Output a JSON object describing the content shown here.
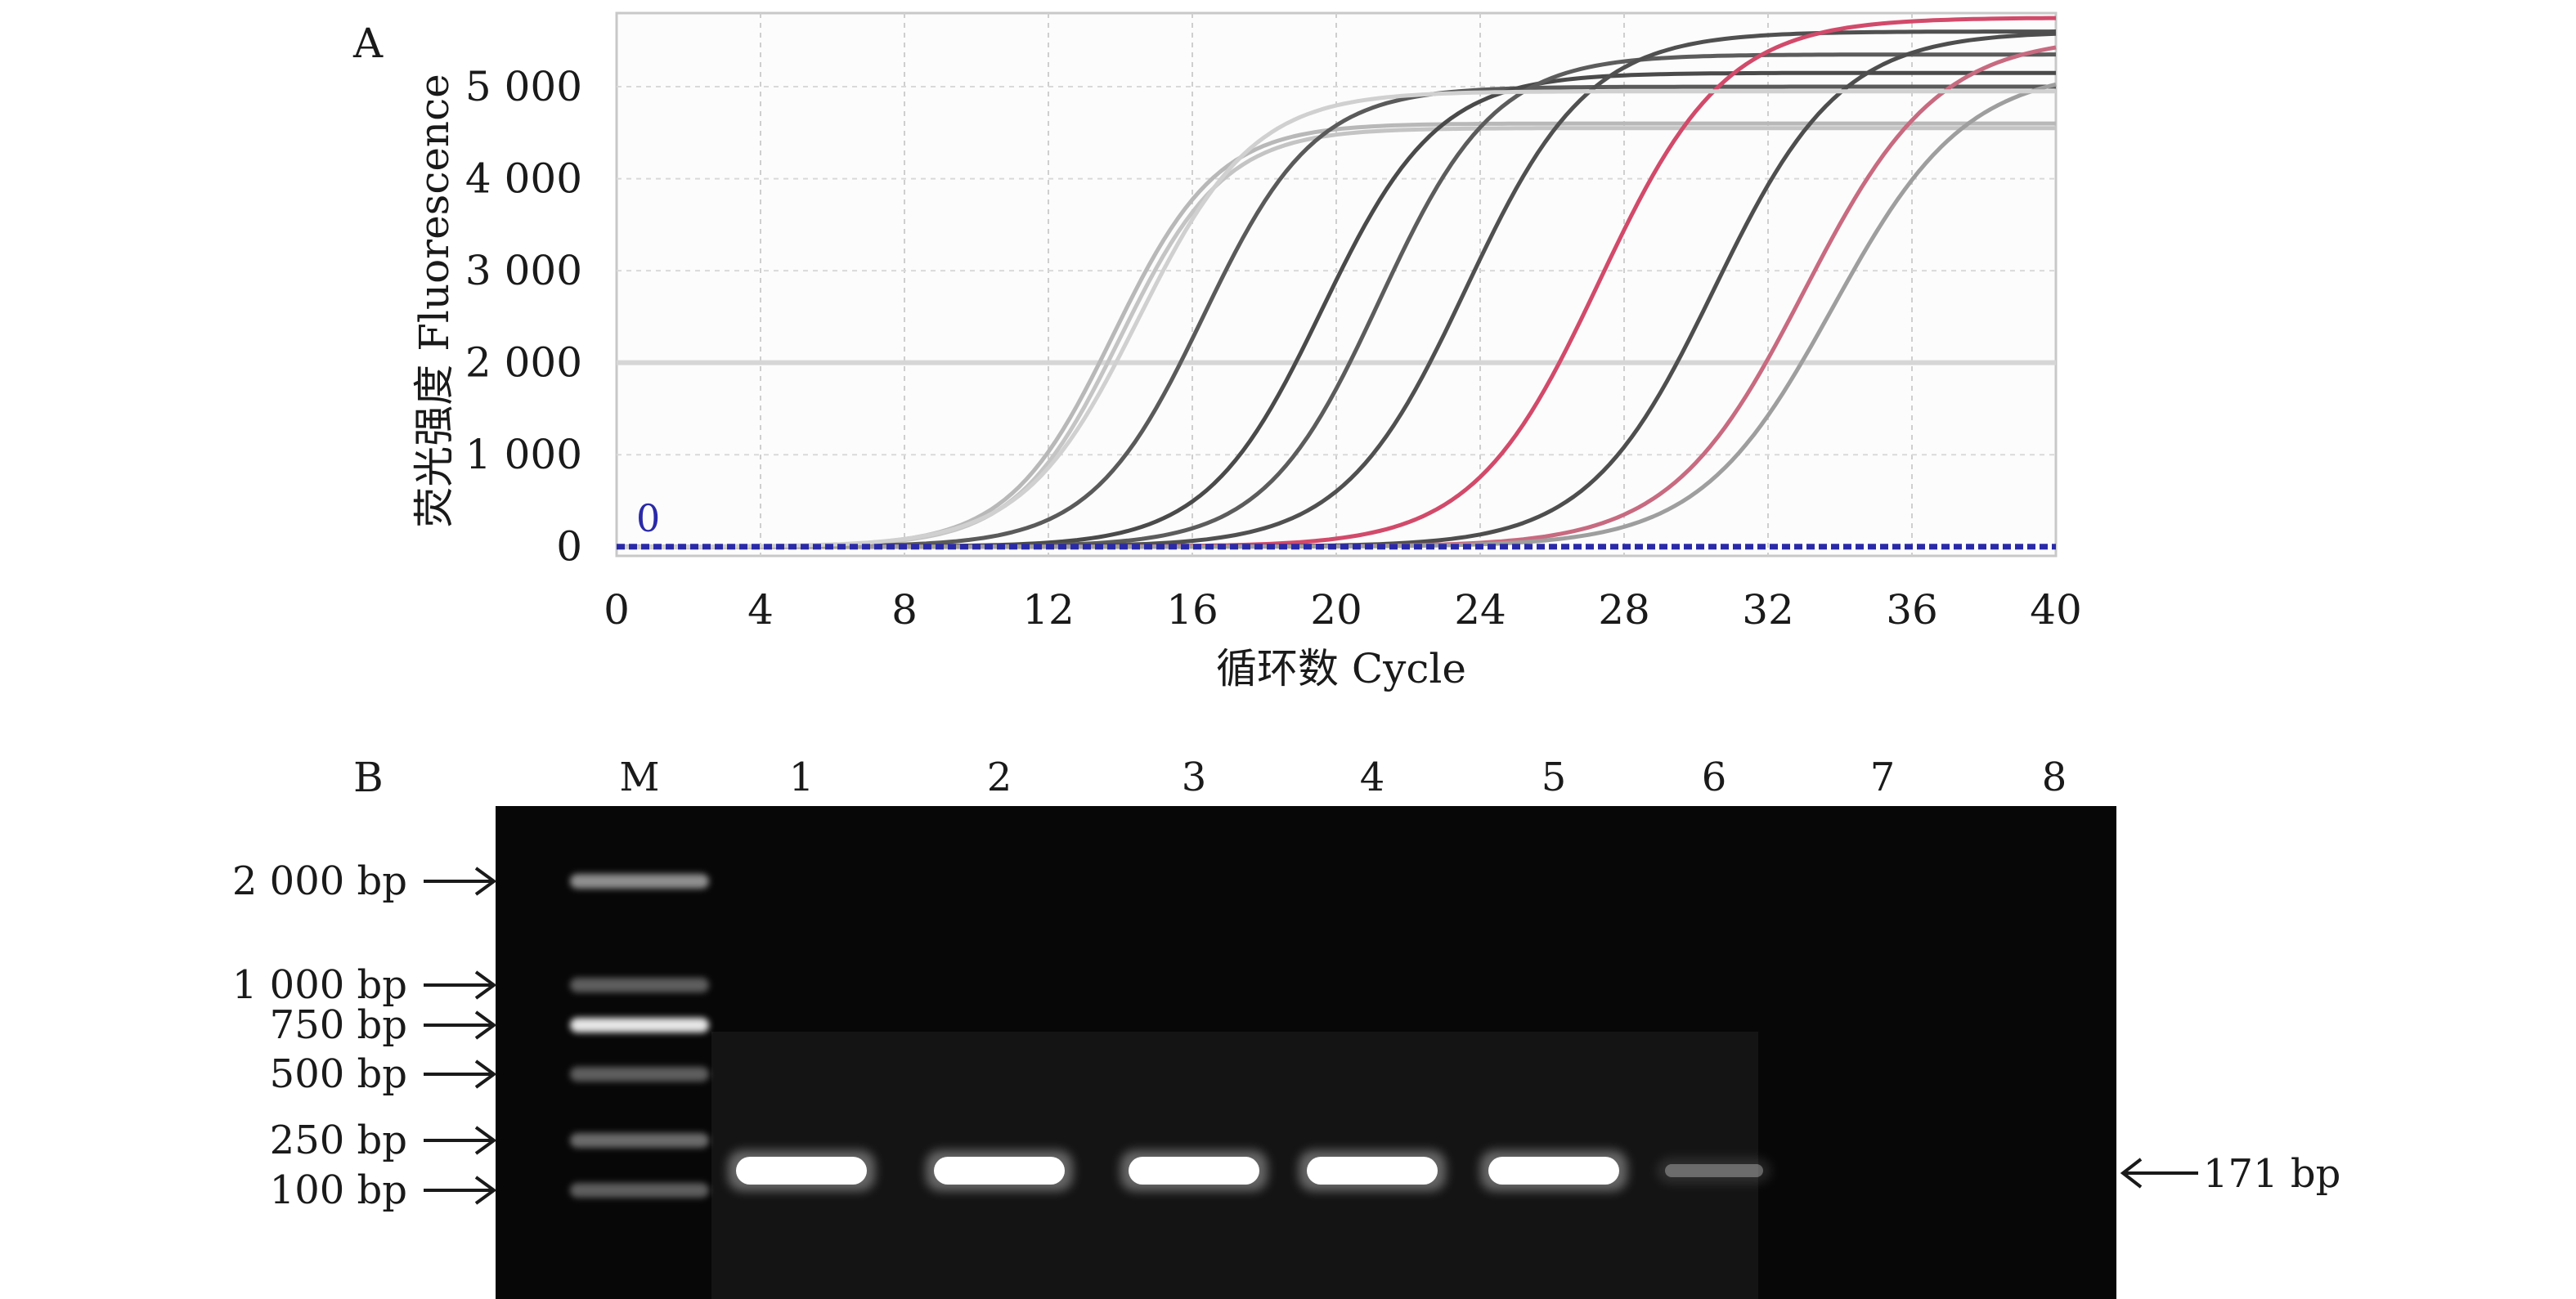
{
  "chart_data": [
    {
      "type": "line",
      "panel_label": "A",
      "xlabel": "循环数 Cycle",
      "ylabel": "荧光强度 Fluorescence",
      "xlim": [
        0,
        40
      ],
      "ylim": [
        -100,
        5800
      ],
      "xticks": [
        0,
        4,
        8,
        12,
        16,
        20,
        24,
        28,
        32,
        36,
        40
      ],
      "yticks": [
        0,
        1000,
        2000,
        3000,
        4000,
        5000
      ],
      "ytick_labels": [
        "0",
        "1 000",
        "2 000",
        "3 000",
        "4 000",
        "5 000"
      ],
      "grid": true,
      "threshold": {
        "value": 0,
        "label": "0",
        "color": "#2a2aa8"
      },
      "series": [
        {
          "curve": {
            "plateau": 4600,
            "midpoint": 13.8,
            "slope": 1.45
          },
          "color": "#b8b8b8"
        },
        {
          "curve": {
            "plateau": 4550,
            "midpoint": 14.0,
            "slope": 1.45
          },
          "color": "#c4c4c4"
        },
        {
          "curve": {
            "plateau": 5000,
            "midpoint": 16.3,
            "slope": 1.55
          },
          "color": "#5a5a5a"
        },
        {
          "curve": {
            "plateau": 5150,
            "midpoint": 19.6,
            "slope": 1.6
          },
          "color": "#4a4a4a"
        },
        {
          "curve": {
            "plateau": 5350,
            "midpoint": 21.2,
            "slope": 1.6
          },
          "color": "#5c5c5c"
        },
        {
          "curve": {
            "plateau": 5600,
            "midpoint": 23.6,
            "slope": 1.7
          },
          "color": "#505050"
        },
        {
          "curve": {
            "plateau": 5750,
            "midpoint": 27.3,
            "slope": 1.75
          },
          "color": "#d24a6a"
        },
        {
          "curve": {
            "plateau": 5600,
            "midpoint": 30.5,
            "slope": 1.75
          },
          "color": "#4e4e4e"
        },
        {
          "curve": {
            "plateau": 5550,
            "midpoint": 33.0,
            "slope": 1.85
          },
          "color": "#c86a80"
        },
        {
          "curve": {
            "plateau": 5200,
            "midpoint": 33.8,
            "slope": 1.85
          },
          "color": "#9e9e9e"
        },
        {
          "curve": {
            "plateau": 4950,
            "midpoint": 14.5,
            "slope": 1.6
          },
          "color": "#d0d0d0"
        }
      ]
    },
    {
      "type": "gel",
      "panel_label": "B",
      "lanes": [
        "M",
        "1",
        "2",
        "3",
        "4",
        "5",
        "6",
        "7",
        "8"
      ],
      "ladder": [
        {
          "label": "2 000 bp",
          "intensity": 0.55
        },
        {
          "label": "1 000 bp",
          "intensity": 0.35
        },
        {
          "label": "750 bp",
          "intensity": 0.9
        },
        {
          "label": "500 bp",
          "intensity": 0.35
        },
        {
          "label": "250 bp",
          "intensity": 0.4
        },
        {
          "label": "100 bp",
          "intensity": 0.35
        }
      ],
      "product_label": "171 bp",
      "product_band_intensity": [
        1,
        1,
        1,
        1,
        1,
        0.3,
        0,
        0
      ]
    }
  ]
}
